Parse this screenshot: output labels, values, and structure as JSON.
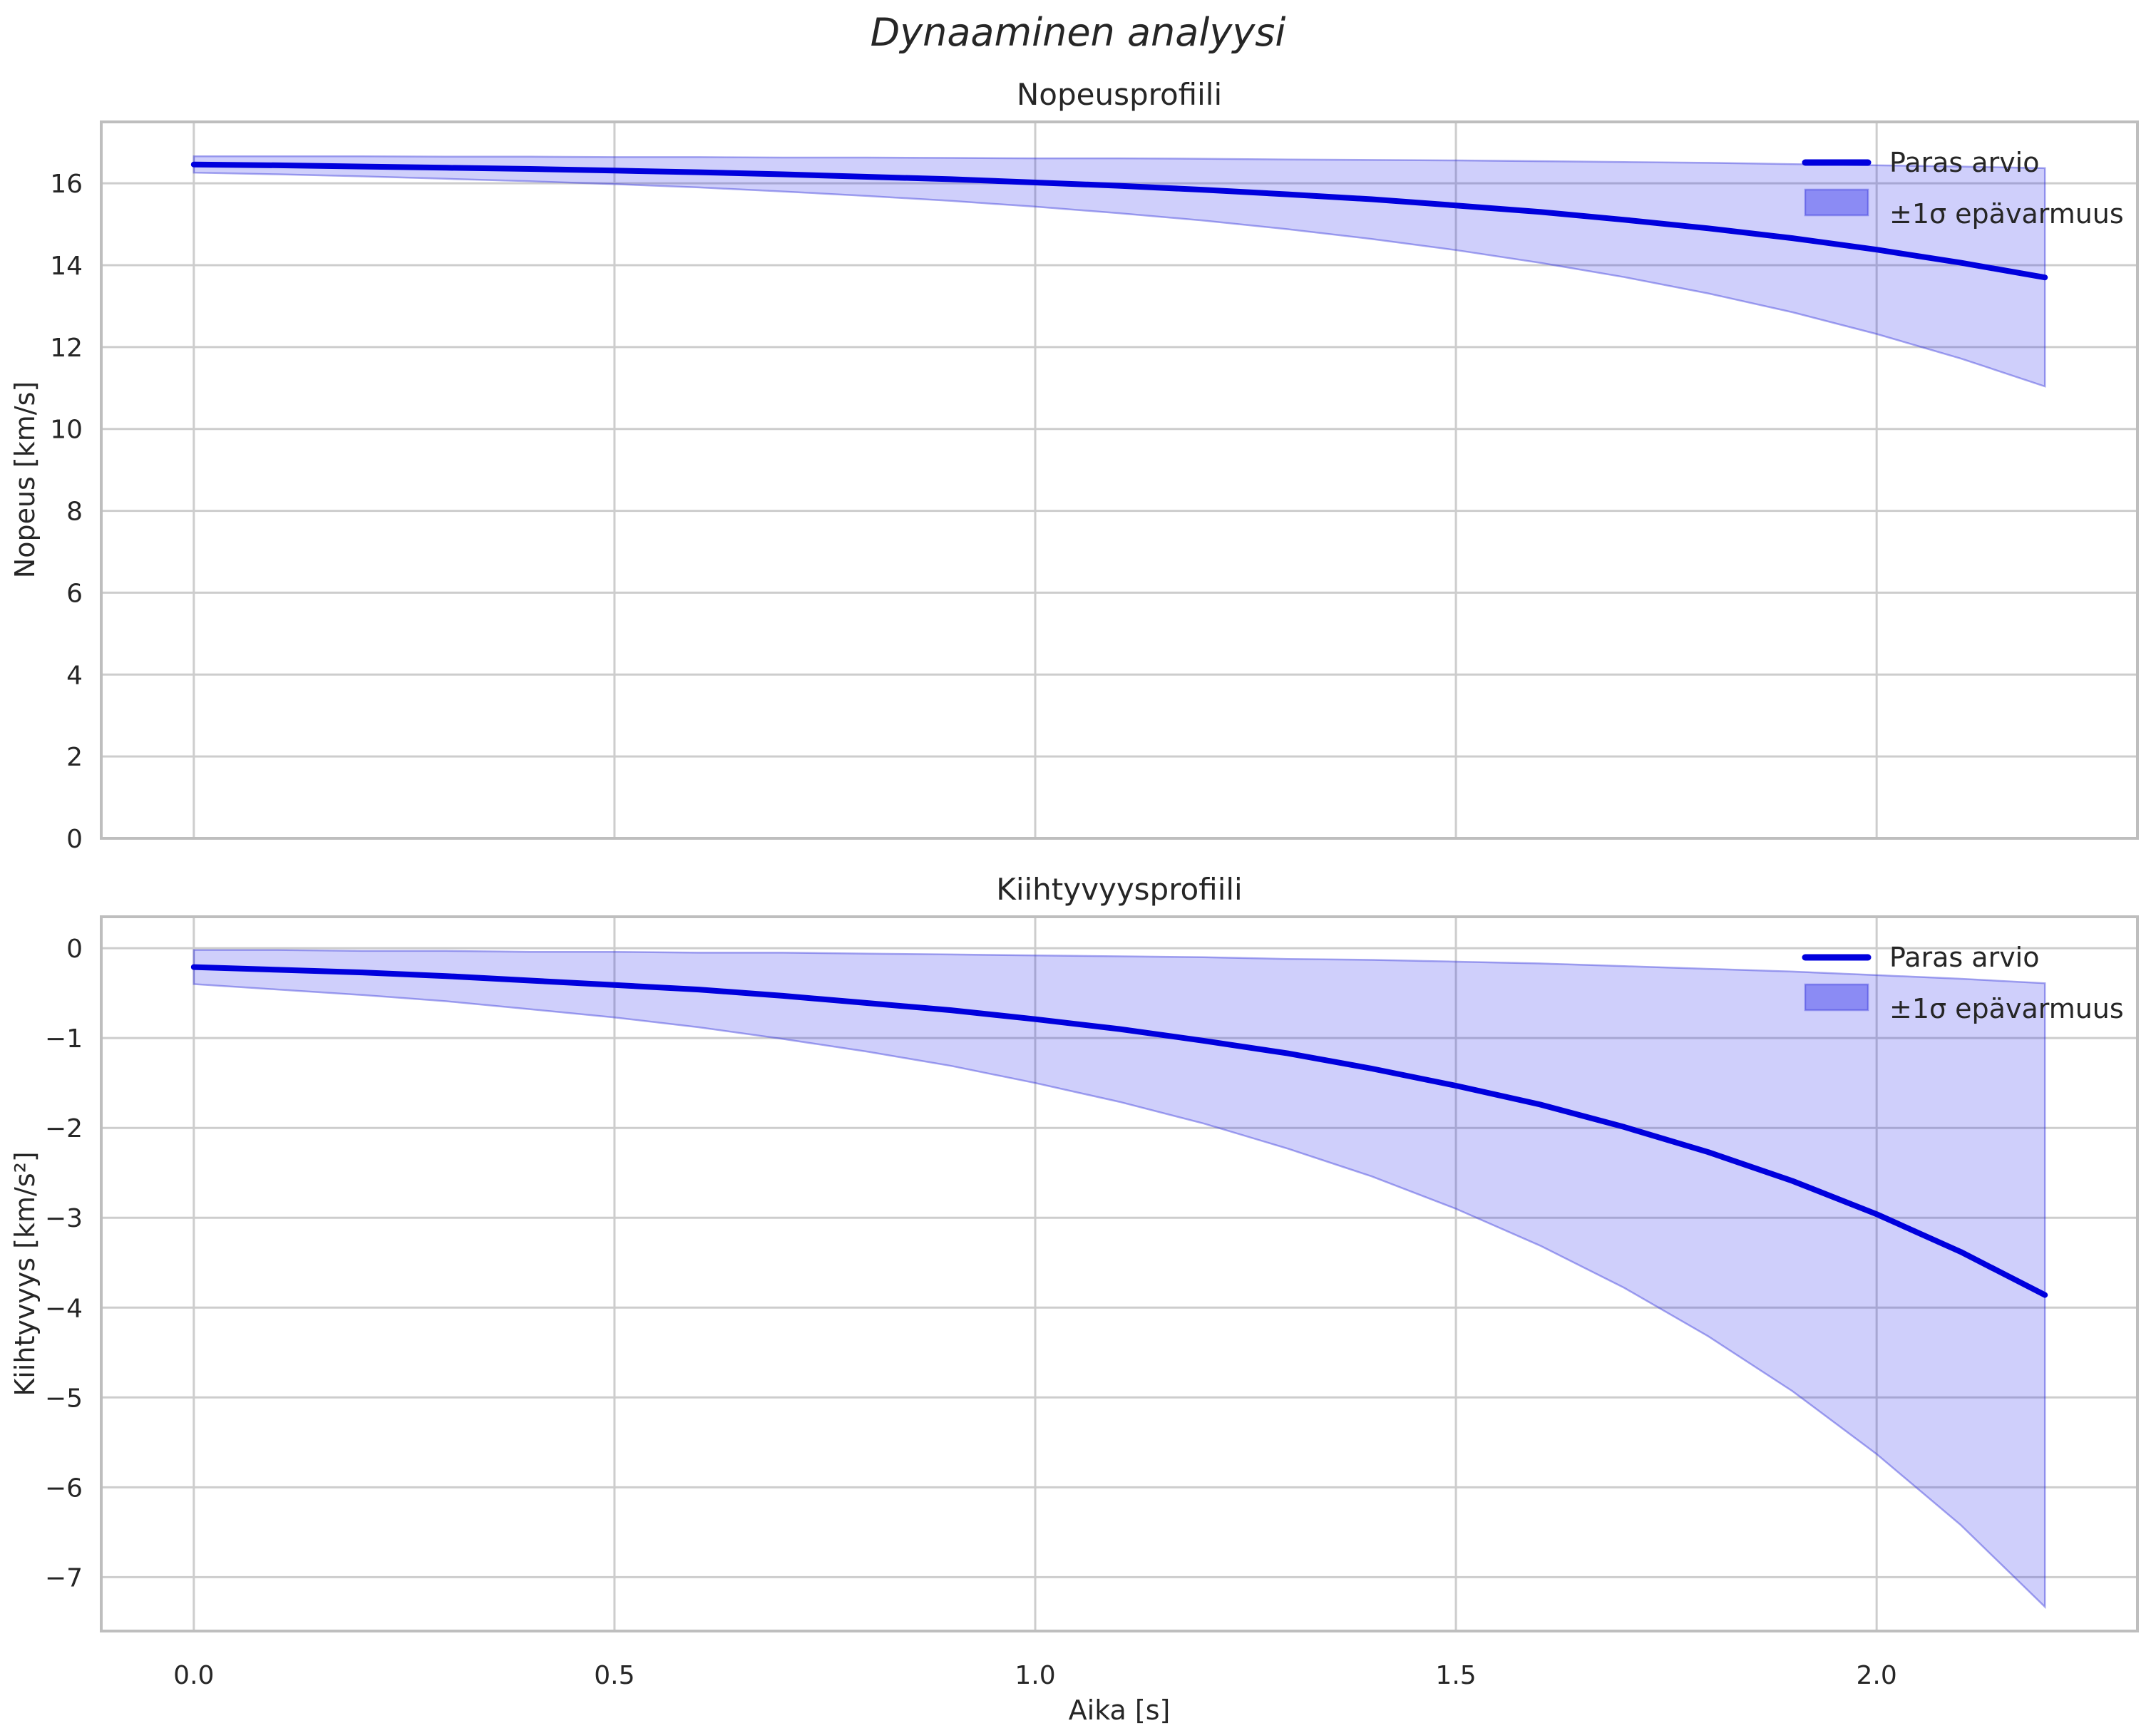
{
  "figure": {
    "title": "Dynaaminen analyysi",
    "xlabel": "Aika [s]",
    "background": "#ffffff",
    "colors": {
      "line": "#0000dd",
      "band_fill": "rgba(30,30,235,0.21)",
      "band_edge": "rgba(60,60,220,0.45)",
      "legend_patch_fill": "rgba(30,30,235,0.38)",
      "grid": "#cdcdcd",
      "spine": "#bebebe",
      "text": "#262626"
    }
  },
  "chart_data": [
    {
      "type": "line",
      "title": "Nopeusprofiili",
      "ylabel": "Nopeus [km/s]",
      "xlabel": "",
      "grid": true,
      "legend_position": "upper right",
      "xlim": [
        -0.11,
        2.31
      ],
      "ylim": [
        0,
        17.5
      ],
      "xtick_values": [
        0,
        0.5,
        1.0,
        1.5,
        2.0
      ],
      "xtick_labels": [],
      "ytick_values": [
        0,
        2,
        4,
        6,
        8,
        10,
        12,
        14,
        16
      ],
      "ytick_labels": [
        "0",
        "2",
        "4",
        "6",
        "8",
        "10",
        "12",
        "14",
        "16"
      ],
      "x": [
        0,
        0.1,
        0.2,
        0.3,
        0.4,
        0.5,
        0.6,
        0.7,
        0.8,
        0.9,
        1.0,
        1.1,
        1.2,
        1.3,
        1.4,
        1.5,
        1.6,
        1.7,
        1.8,
        1.9,
        2.0,
        2.1,
        2.2
      ],
      "series": [
        {
          "name": "Paras arvio",
          "role": "line",
          "values": [
            16.46,
            16.44,
            16.41,
            16.38,
            16.35,
            16.31,
            16.27,
            16.22,
            16.16,
            16.1,
            16.02,
            15.94,
            15.84,
            15.73,
            15.61,
            15.46,
            15.3,
            15.11,
            14.9,
            14.66,
            14.38,
            14.06,
            13.7
          ]
        },
        {
          "name": "±1σ epävarmuus",
          "role": "band_upper",
          "values": [
            16.66,
            16.66,
            16.66,
            16.65,
            16.65,
            16.64,
            16.64,
            16.63,
            16.63,
            16.62,
            16.61,
            16.61,
            16.6,
            16.58,
            16.57,
            16.56,
            16.54,
            16.52,
            16.5,
            16.47,
            16.44,
            16.41,
            16.37
          ]
        },
        {
          "name": "±1σ epävarmuus",
          "role": "band_lower",
          "values": [
            16.26,
            16.22,
            16.17,
            16.11,
            16.05,
            15.98,
            15.9,
            15.8,
            15.69,
            15.57,
            15.43,
            15.27,
            15.09,
            14.88,
            14.64,
            14.37,
            14.06,
            13.71,
            13.31,
            12.85,
            12.32,
            11.72,
            11.04
          ]
        }
      ],
      "legend": [
        "Paras arvio",
        "±1σ epävarmuus"
      ]
    },
    {
      "type": "line",
      "title": "Kiihtyvyysprofiili",
      "ylabel": "Kiihtyvyys [km/s²]",
      "xlabel": "Aika [s]",
      "grid": true,
      "legend_position": "upper right",
      "xlim": [
        -0.11,
        2.31
      ],
      "ylim": [
        -7.6,
        0.35
      ],
      "xtick_values": [
        0,
        0.5,
        1.0,
        1.5,
        2.0
      ],
      "xtick_labels": [
        "0.0",
        "0.5",
        "1.0",
        "1.5",
        "2.0"
      ],
      "ytick_values": [
        0,
        -1,
        -2,
        -3,
        -4,
        -5,
        -6,
        -7
      ],
      "ytick_labels": [
        "0",
        "−1",
        "−2",
        "−3",
        "−4",
        "−5",
        "−6",
        "−7"
      ],
      "x": [
        0,
        0.1,
        0.2,
        0.3,
        0.4,
        0.5,
        0.6,
        0.7,
        0.8,
        0.9,
        1.0,
        1.1,
        1.2,
        1.3,
        1.4,
        1.5,
        1.6,
        1.7,
        1.8,
        1.9,
        2.0,
        2.1,
        2.2
      ],
      "series": [
        {
          "name": "Paras arvio",
          "role": "line",
          "values": [
            -0.21,
            -0.24,
            -0.27,
            -0.31,
            -0.36,
            -0.41,
            -0.46,
            -0.53,
            -0.61,
            -0.69,
            -0.79,
            -0.9,
            -1.03,
            -1.17,
            -1.34,
            -1.53,
            -1.74,
            -1.99,
            -2.27,
            -2.59,
            -2.96,
            -3.38,
            -3.86
          ]
        },
        {
          "name": "±1σ epävarmuus",
          "role": "band_upper",
          "values": [
            -0.02,
            -0.02,
            -0.03,
            -0.03,
            -0.04,
            -0.04,
            -0.05,
            -0.05,
            -0.06,
            -0.07,
            -0.08,
            -0.09,
            -0.1,
            -0.12,
            -0.13,
            -0.15,
            -0.17,
            -0.2,
            -0.23,
            -0.26,
            -0.3,
            -0.34,
            -0.39
          ]
        },
        {
          "name": "±1σ epävarmuus",
          "role": "band_lower",
          "values": [
            -0.4,
            -0.46,
            -0.52,
            -0.59,
            -0.68,
            -0.77,
            -0.88,
            -1.01,
            -1.15,
            -1.31,
            -1.5,
            -1.71,
            -1.95,
            -2.23,
            -2.54,
            -2.9,
            -3.31,
            -3.78,
            -4.32,
            -4.93,
            -5.63,
            -6.42,
            -7.33
          ]
        }
      ],
      "legend": [
        "Paras arvio",
        "±1σ epävarmuus"
      ]
    }
  ]
}
